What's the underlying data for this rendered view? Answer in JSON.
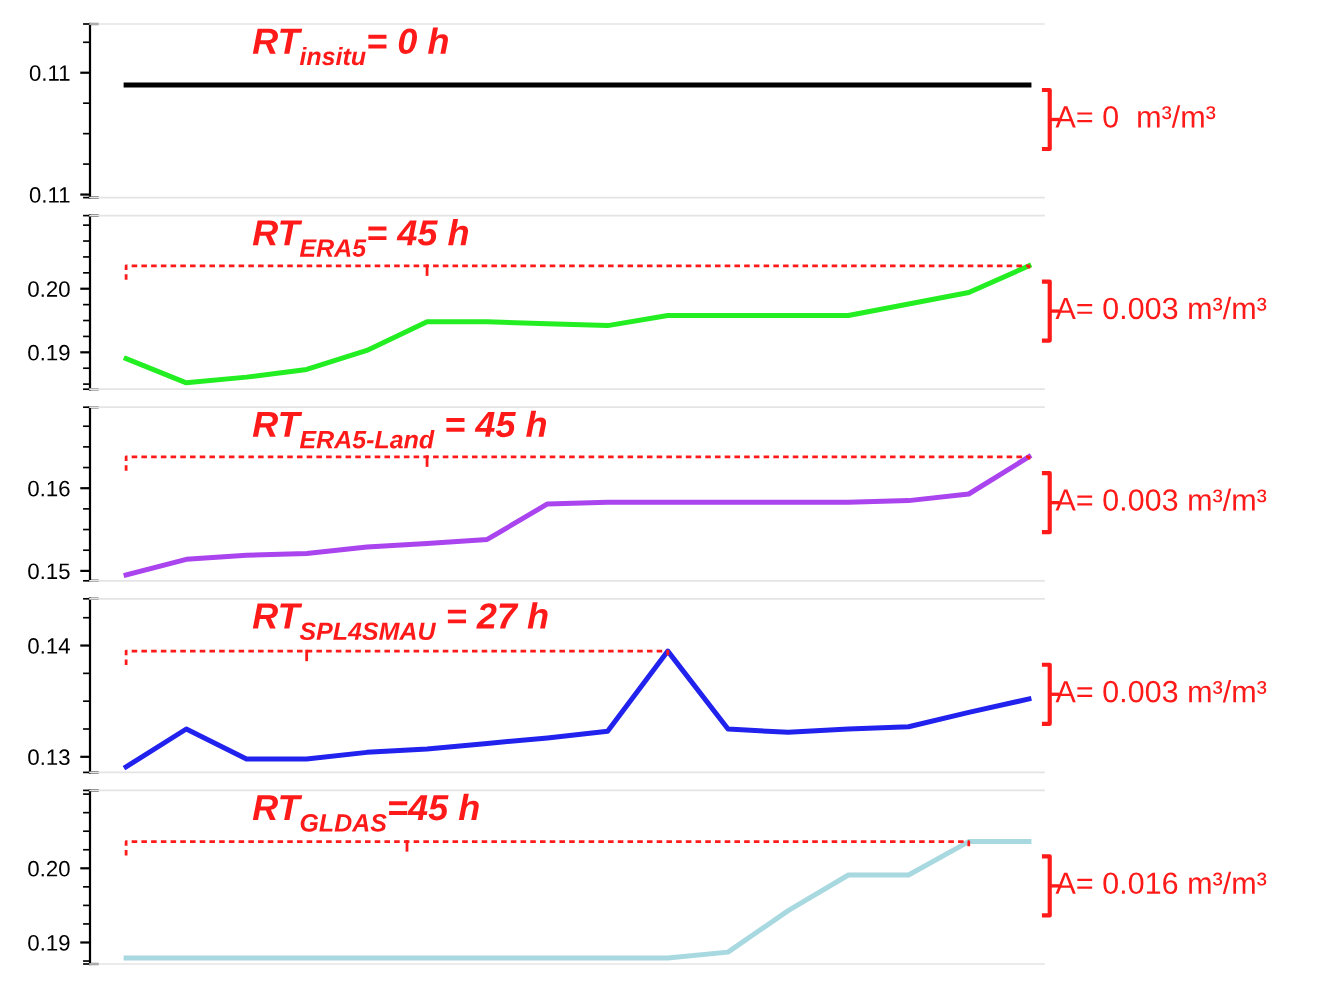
{
  "chart_data": [
    {
      "type": "line",
      "categories": [
        null,
        null,
        null,
        null,
        null,
        null,
        null,
        null,
        null,
        null,
        null,
        null,
        null,
        null,
        null,
        null
      ],
      "tick_labels": "y",
      "grid": false,
      "series": [
        {
          "color": "#000000",
          "values": [
            0.1116,
            0.1116,
            0.1116,
            0.1116,
            0.1116,
            0.1116,
            0.1116,
            0.1116,
            0.1116,
            0.1116,
            0.1116,
            0.1116,
            0.1116,
            0.1116,
            0.1116,
            0.1116
          ]
        }
      ],
      "ylim": [
        0.1079,
        0.1136
      ],
      "yticks": [
        {
          "value": 0.108,
          "label": "0.11"
        },
        {
          "value": 0.112,
          "label": "0.11"
        }
      ],
      "annotations": [
        "RT$_{insitu}$= 0 h",
        "A= 0  m³/m³"
      ]
    },
    {
      "type": "line",
      "categories": [
        null,
        null,
        null,
        null,
        null,
        null,
        null,
        null,
        null,
        null,
        null,
        null,
        null,
        null,
        null,
        null
      ],
      "tick_labels": "y",
      "grid": false,
      "series": [
        {
          "color": "#22ee22",
          "values": [
            0.189,
            0.1852,
            0.1861,
            0.1873,
            0.1903,
            0.1948,
            0.1948,
            0.1945,
            0.1942,
            0.1958,
            0.1958,
            0.1958,
            0.1958,
            0.1976,
            0.1994,
            0.2036
          ]
        }
      ],
      "ylim": [
        0.1842,
        0.2115
      ],
      "yticks": [
        0.19,
        {
          "value": 0.2,
          "label": "0.20"
        }
      ],
      "annotations": [
        "RT$_{ERA5}$= 45 h",
        "A= 0.003 m³/m³"
      ]
    },
    {
      "type": "line",
      "categories": [
        null,
        null,
        null,
        null,
        null,
        null,
        null,
        null,
        null,
        null,
        null,
        null,
        null,
        null,
        null,
        null
      ],
      "tick_labels": "y",
      "grid": false,
      "series": [
        {
          "color": "#aa44ee",
          "values": [
            0.1495,
            0.1514,
            0.1519,
            0.1521,
            0.1529,
            0.1533,
            0.1538,
            0.1581,
            0.1583,
            0.1583,
            0.1583,
            0.1583,
            0.1583,
            0.1585,
            0.1593,
            0.1638
          ]
        }
      ],
      "ylim": [
        0.1488,
        0.1698
      ],
      "yticks": [
        0.15,
        0.16
      ],
      "annotations": [
        "RT$_{ERA5-Land}$ = 45 h",
        "A= 0.003 m³/m³"
      ]
    },
    {
      "type": "line",
      "categories": [
        null,
        null,
        null,
        null,
        null,
        null,
        null,
        null,
        null,
        null,
        null,
        null,
        null,
        null,
        null,
        null
      ],
      "tick_labels": "y",
      "grid": false,
      "series": [
        {
          "color": "#2222ee",
          "values": [
            0.1291,
            0.1325,
            0.1298,
            0.1298,
            0.1304,
            0.1307,
            0.1312,
            0.1317,
            0.1323,
            0.1395,
            0.1325,
            0.1322,
            0.1325,
            0.1327,
            0.134,
            0.1352
          ]
        }
      ],
      "ylim": [
        0.1286,
        0.1442
      ],
      "yticks": [
        0.13,
        0.14
      ],
      "annotations": [
        "RT$_{SPL4SMAU}$ = 27 h",
        "A= 0.003 m³/m³"
      ]
    },
    {
      "type": "line",
      "categories": [
        null,
        null,
        null,
        null,
        null,
        null,
        null,
        null,
        null,
        null,
        null,
        null,
        null,
        null,
        null,
        null
      ],
      "tick_labels": "y",
      "grid": false,
      "series": [
        {
          "color": "#a8d8e0",
          "values": [
            0.1879,
            0.1879,
            0.1879,
            0.1879,
            0.1879,
            0.1879,
            0.1879,
            0.1879,
            0.1879,
            0.1879,
            0.1887,
            0.1943,
            0.1991,
            0.1991,
            0.2036,
            0.2036
          ]
        }
      ],
      "ylim": [
        0.1871,
        0.2105
      ],
      "yticks": [
        0.19,
        {
          "value": 0.2,
          "label": "0.20"
        }
      ],
      "annotations": [
        "RT$_{GLDAS}$=45 h",
        "A= 0.016 m³/m³"
      ]
    }
  ]
}
